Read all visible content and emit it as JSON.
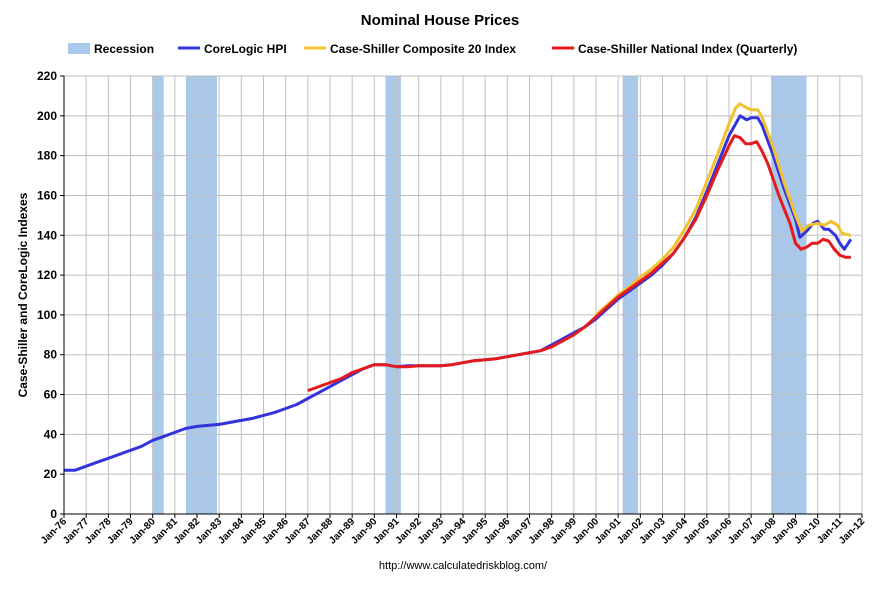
{
  "chart_data": {
    "type": "line",
    "title": "Nominal House Prices",
    "ylabel": "Case-Shiller and CoreLogic Indexes",
    "source": "http://www.calculatedriskblog.com/",
    "ylim": [
      0,
      220
    ],
    "yticks": [
      0,
      20,
      40,
      60,
      80,
      100,
      120,
      140,
      160,
      180,
      200,
      220
    ],
    "xlim": [
      1976.0,
      2012.0
    ],
    "xtick_labels": [
      "Jan-76",
      "Jan-77",
      "Jan-78",
      "Jan-79",
      "Jan-80",
      "Jan-81",
      "Jan-82",
      "Jan-83",
      "Jan-84",
      "Jan-85",
      "Jan-86",
      "Jan-87",
      "Jan-88",
      "Jan-89",
      "Jan-90",
      "Jan-91",
      "Jan-92",
      "Jan-93",
      "Jan-94",
      "Jan-95",
      "Jan-96",
      "Jan-97",
      "Jan-98",
      "Jan-99",
      "Jan-00",
      "Jan-01",
      "Jan-02",
      "Jan-03",
      "Jan-04",
      "Jan-05",
      "Jan-06",
      "Jan-07",
      "Jan-08",
      "Jan-09",
      "Jan-10",
      "Jan-11",
      "Jan-12"
    ],
    "grid": true,
    "legend_position": "top",
    "recession": {
      "name": "Recession",
      "color": "#a9c8ea",
      "periods": [
        [
          1980.0,
          1980.5
        ],
        [
          1981.5,
          1982.9
        ],
        [
          1990.5,
          1991.2
        ],
        [
          2001.2,
          2001.9
        ],
        [
          2007.9,
          2009.5
        ]
      ]
    },
    "series": [
      {
        "name": "CoreLogic HPI",
        "color": "#3333dd",
        "points": [
          [
            1976.0,
            22
          ],
          [
            1976.5,
            22
          ],
          [
            1977.0,
            24
          ],
          [
            1977.5,
            26
          ],
          [
            1978.0,
            28
          ],
          [
            1978.5,
            30
          ],
          [
            1979.0,
            32
          ],
          [
            1979.5,
            34
          ],
          [
            1980.0,
            37
          ],
          [
            1980.5,
            39
          ],
          [
            1981.0,
            41
          ],
          [
            1981.5,
            43
          ],
          [
            1982.0,
            44
          ],
          [
            1982.5,
            44.5
          ],
          [
            1983.0,
            45
          ],
          [
            1983.5,
            46
          ],
          [
            1984.0,
            47
          ],
          [
            1984.5,
            48
          ],
          [
            1985.0,
            49.5
          ],
          [
            1985.5,
            51
          ],
          [
            1986.0,
            53
          ],
          [
            1986.5,
            55
          ],
          [
            1987.0,
            58
          ],
          [
            1987.5,
            61
          ],
          [
            1988.0,
            64
          ],
          [
            1988.5,
            67
          ],
          [
            1989.0,
            70
          ],
          [
            1989.5,
            73
          ],
          [
            1990.0,
            75
          ],
          [
            1990.5,
            75
          ],
          [
            1991.0,
            74
          ],
          [
            1991.5,
            74.5
          ],
          [
            1992.0,
            74.5
          ],
          [
            1992.5,
            74.5
          ],
          [
            1993.0,
            74.5
          ],
          [
            1993.5,
            75
          ],
          [
            1994.0,
            76
          ],
          [
            1994.5,
            77
          ],
          [
            1995.0,
            77.5
          ],
          [
            1995.5,
            78
          ],
          [
            1996.0,
            79
          ],
          [
            1996.5,
            80
          ],
          [
            1997.0,
            81
          ],
          [
            1997.5,
            82
          ],
          [
            1998.0,
            85
          ],
          [
            1998.5,
            88
          ],
          [
            1999.0,
            91
          ],
          [
            1999.5,
            94
          ],
          [
            2000.0,
            98
          ],
          [
            2000.5,
            103
          ],
          [
            2001.0,
            108
          ],
          [
            2001.5,
            112
          ],
          [
            2002.0,
            116
          ],
          [
            2002.5,
            120
          ],
          [
            2003.0,
            125
          ],
          [
            2003.5,
            131
          ],
          [
            2004.0,
            139
          ],
          [
            2004.5,
            149
          ],
          [
            2005.0,
            162
          ],
          [
            2005.5,
            176
          ],
          [
            2006.0,
            190
          ],
          [
            2006.5,
            200
          ],
          [
            2006.8,
            198
          ],
          [
            2007.0,
            199
          ],
          [
            2007.3,
            199
          ],
          [
            2007.5,
            195
          ],
          [
            2008.0,
            180
          ],
          [
            2008.5,
            163
          ],
          [
            2009.0,
            148
          ],
          [
            2009.2,
            139
          ],
          [
            2009.5,
            142
          ],
          [
            2009.8,
            146
          ],
          [
            2010.0,
            147
          ],
          [
            2010.3,
            143
          ],
          [
            2010.5,
            143
          ],
          [
            2010.8,
            140
          ],
          [
            2011.0,
            136
          ],
          [
            2011.2,
            133
          ],
          [
            2011.5,
            138
          ]
        ]
      },
      {
        "name": "Case-Shiller Composite 20 Index",
        "color": "#f2c12e",
        "points": [
          [
            2000.0,
            100
          ],
          [
            2000.5,
            105
          ],
          [
            2001.0,
            110
          ],
          [
            2001.5,
            114
          ],
          [
            2002.0,
            119
          ],
          [
            2002.5,
            123
          ],
          [
            2003.0,
            128
          ],
          [
            2003.5,
            134
          ],
          [
            2004.0,
            143
          ],
          [
            2004.5,
            153
          ],
          [
            2005.0,
            167
          ],
          [
            2005.5,
            181
          ],
          [
            2006.0,
            196
          ],
          [
            2006.3,
            204
          ],
          [
            2006.5,
            206
          ],
          [
            2006.8,
            204
          ],
          [
            2007.0,
            203
          ],
          [
            2007.3,
            203
          ],
          [
            2007.5,
            199
          ],
          [
            2008.0,
            184
          ],
          [
            2008.5,
            166
          ],
          [
            2009.0,
            150
          ],
          [
            2009.3,
            142
          ],
          [
            2009.6,
            145
          ],
          [
            2010.0,
            146
          ],
          [
            2010.3,
            145
          ],
          [
            2010.6,
            147
          ],
          [
            2010.9,
            145
          ],
          [
            2011.1,
            141
          ],
          [
            2011.5,
            140
          ]
        ]
      },
      {
        "name": "Case-Shiller National Index (Quarterly)",
        "color": "#e41a1c",
        "points": [
          [
            1987.0,
            62
          ],
          [
            1987.5,
            64
          ],
          [
            1988.0,
            66
          ],
          [
            1988.5,
            68
          ],
          [
            1989.0,
            71
          ],
          [
            1989.5,
            73
          ],
          [
            1990.0,
            75
          ],
          [
            1990.5,
            75
          ],
          [
            1991.0,
            74
          ],
          [
            1991.5,
            74
          ],
          [
            1992.0,
            74.5
          ],
          [
            1992.5,
            74.5
          ],
          [
            1993.0,
            74.5
          ],
          [
            1993.5,
            75
          ],
          [
            1994.0,
            76
          ],
          [
            1994.5,
            77
          ],
          [
            1995.0,
            77.5
          ],
          [
            1995.5,
            78
          ],
          [
            1996.0,
            79
          ],
          [
            1996.5,
            80
          ],
          [
            1997.0,
            81
          ],
          [
            1997.5,
            82
          ],
          [
            1998.0,
            84
          ],
          [
            1998.5,
            87
          ],
          [
            1999.0,
            90
          ],
          [
            1999.5,
            94
          ],
          [
            2000.0,
            99
          ],
          [
            2000.5,
            104
          ],
          [
            2001.0,
            109
          ],
          [
            2001.5,
            113
          ],
          [
            2002.0,
            117
          ],
          [
            2002.5,
            121
          ],
          [
            2003.0,
            126
          ],
          [
            2003.5,
            131
          ],
          [
            2004.0,
            139
          ],
          [
            2004.5,
            148
          ],
          [
            2005.0,
            160
          ],
          [
            2005.5,
            173
          ],
          [
            2006.0,
            185
          ],
          [
            2006.25,
            190
          ],
          [
            2006.5,
            189
          ],
          [
            2006.75,
            186
          ],
          [
            2007.0,
            186
          ],
          [
            2007.25,
            187
          ],
          [
            2007.5,
            182
          ],
          [
            2007.75,
            176
          ],
          [
            2008.0,
            168
          ],
          [
            2008.25,
            160
          ],
          [
            2008.5,
            153
          ],
          [
            2008.75,
            146
          ],
          [
            2009.0,
            136
          ],
          [
            2009.25,
            133
          ],
          [
            2009.5,
            134
          ],
          [
            2009.75,
            136
          ],
          [
            2010.0,
            136
          ],
          [
            2010.25,
            138
          ],
          [
            2010.5,
            137
          ],
          [
            2010.75,
            133
          ],
          [
            2011.0,
            130
          ],
          [
            2011.25,
            129
          ],
          [
            2011.5,
            129
          ]
        ]
      }
    ]
  }
}
